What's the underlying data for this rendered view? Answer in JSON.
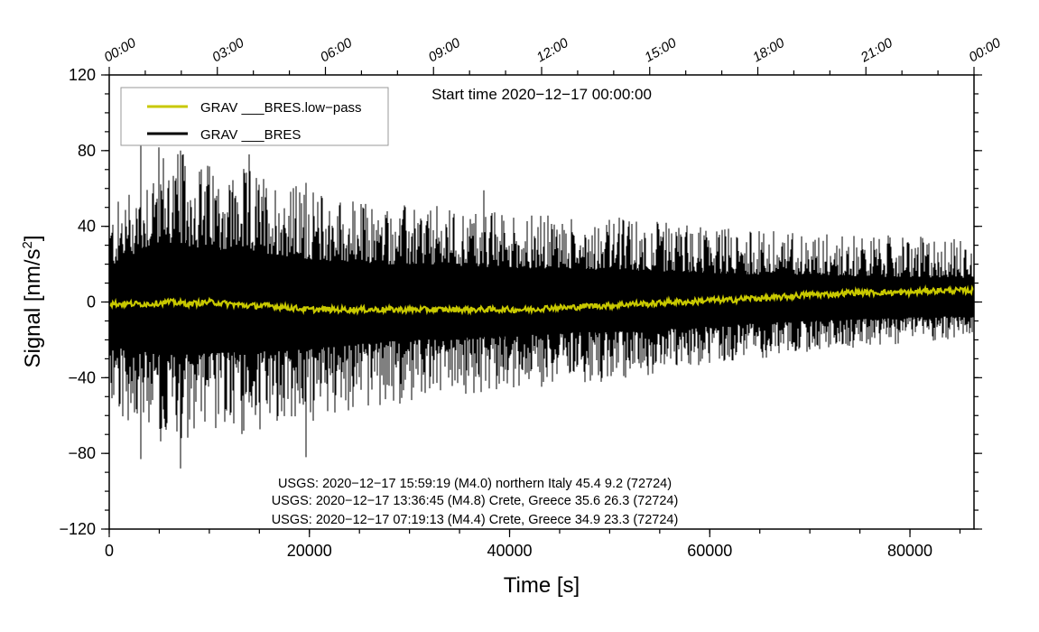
{
  "chart_data": {
    "type": "line",
    "xlabel": "Time [s]",
    "ylabel_main": "Signal [nm/s",
    "ylabel_sup": "2",
    "ylabel_close": "]",
    "xlim": [
      0,
      86400
    ],
    "ylim": [
      -120,
      120
    ],
    "x_ticks": [
      0,
      20000,
      40000,
      60000,
      80000
    ],
    "x_tick_labels": [
      "0",
      "20000",
      "40000",
      "60000",
      "80000"
    ],
    "y_ticks": [
      -120,
      -80,
      -40,
      0,
      40,
      80,
      120
    ],
    "y_tick_labels": [
      "−120",
      "−80",
      "−40",
      "0",
      "40",
      "80",
      "120"
    ],
    "top_axis_ticks": [
      0,
      10800,
      21600,
      32400,
      43200,
      54000,
      64800,
      75600,
      86400
    ],
    "top_axis_labels": [
      "00:00",
      "03:00",
      "06:00",
      "09:00",
      "12:00",
      "15:00",
      "18:00",
      "21:00",
      "00:00"
    ],
    "start_time_label": "Start time 2020−12−17 00:00:00",
    "legend_placement": "top-left",
    "grid": false,
    "series": [
      {
        "name": "GRAV ___BRES.low−pass",
        "color": "#c8c800",
        "x": [
          0,
          2000,
          4000,
          6000,
          8000,
          10000,
          12000,
          14000,
          16000,
          18000,
          20000,
          22000,
          24000,
          26000,
          28000,
          30000,
          32000,
          34000,
          36000,
          38000,
          40000,
          42000,
          44000,
          46000,
          48000,
          50000,
          52000,
          54000,
          56000,
          58000,
          60000,
          62000,
          64000,
          66000,
          68000,
          70000,
          72000,
          74000,
          76000,
          78000,
          80000,
          82000,
          84000,
          86400
        ],
        "y": [
          -1,
          -1,
          -1,
          0,
          -1,
          0,
          -1,
          -2,
          -2,
          -3,
          -4,
          -4,
          -4,
          -4,
          -4,
          -4,
          -4,
          -4,
          -4,
          -4,
          -4,
          -4,
          -3,
          -3,
          -2,
          -2,
          -1,
          -1,
          0,
          0,
          1,
          1,
          2,
          2,
          3,
          4,
          4,
          5,
          5,
          5,
          5,
          6,
          6,
          6
        ]
      },
      {
        "name": "GRAV ___BRES",
        "color": "#000000",
        "x": [
          0,
          5000,
          10000,
          15000,
          20000,
          25000,
          30000,
          35000,
          40000,
          45000,
          50000,
          55000,
          60000,
          65000,
          70000,
          75000,
          80000,
          86400
        ],
        "upper_envelope": [
          40,
          70,
          62,
          58,
          50,
          45,
          43,
          42,
          40,
          38,
          38,
          36,
          34,
          32,
          32,
          30,
          29,
          28
        ],
        "lower_envelope": [
          -50,
          -62,
          -60,
          -58,
          -55,
          -48,
          -45,
          -42,
          -40,
          -36,
          -35,
          -32,
          -28,
          -25,
          -22,
          -20,
          -18,
          -16
        ],
        "peaks_max": [
          {
            "x": 3200,
            "y": 84
          },
          {
            "x": 7100,
            "y": 80
          },
          {
            "x": 14000,
            "y": 78
          },
          {
            "x": 19700,
            "y": 63
          },
          {
            "x": 37400,
            "y": 59
          }
        ],
        "peaks_min": [
          {
            "x": 3200,
            "y": -83
          },
          {
            "x": 7100,
            "y": -88
          },
          {
            "x": 19700,
            "y": -82
          }
        ]
      }
    ],
    "annotations": [
      "USGS: 2020−12−17 15:59:19 (M4.0) northern Italy 45.4 9.2 (72724)",
      "USGS: 2020−12−17 13:36:45 (M4.8) Crete, Greece 35.6 26.3 (72724)",
      "USGS: 2020−12−17 07:19:13 (M4.4) Crete, Greece 34.9 23.3 (72724)"
    ]
  }
}
